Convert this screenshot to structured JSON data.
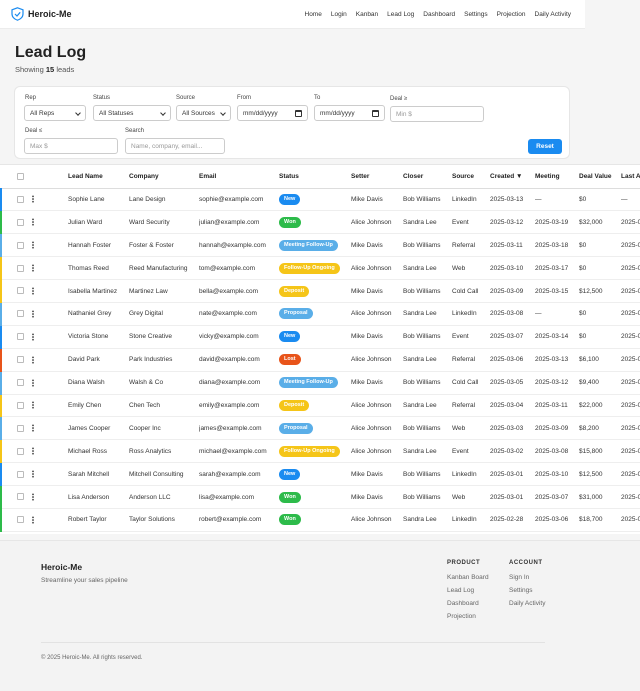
{
  "brand": {
    "name": "Heroic-Me"
  },
  "nav": [
    "Home",
    "Login",
    "Kanban",
    "Lead Log",
    "Dashboard",
    "Settings",
    "Projection",
    "Daily Activity"
  ],
  "header": {
    "title": "Lead Log",
    "showing_prefix": "Showing",
    "count": "15",
    "showing_suffix": "leads"
  },
  "filters": {
    "rep_label": "Rep",
    "rep_value": "All Reps",
    "status_label": "Status",
    "status_value": "All Statuses",
    "source_label": "Source",
    "source_value": "All Sources",
    "from_label": "From",
    "from_value": "mm/dd/yyyy",
    "to_label": "To",
    "to_value": "mm/dd/yyyy",
    "deal_min_label": "Deal ≥",
    "deal_min_placeholder": "Min $",
    "deal_max_label": "Deal ≤",
    "deal_max_placeholder": "Max $",
    "search_label": "Search",
    "search_placeholder": "Name, company, email...",
    "reset_label": "Reset"
  },
  "table": {
    "columns": [
      "Lead Name",
      "Company",
      "Email",
      "Status",
      "Setter",
      "Closer",
      "Source",
      "Created ▼",
      "Meeting",
      "Deal Value",
      "Last Ac"
    ],
    "rows": [
      {
        "name": "Sophie Lane",
        "company": "Lane Design",
        "email": "sophie@example.com",
        "status": "New",
        "setter": "Mike Davis",
        "closer": "Bob Williams",
        "source": "LinkedIn",
        "created": "2025-03-13",
        "meeting": "—",
        "deal": "$0",
        "last": "—"
      },
      {
        "name": "Julian Ward",
        "company": "Ward Security",
        "email": "julian@example.com",
        "status": "Won",
        "setter": "Alice Johnson",
        "closer": "Sandra Lee",
        "source": "Event",
        "created": "2025-03-12",
        "meeting": "2025-03-19",
        "deal": "$32,000",
        "last": "2025-0"
      },
      {
        "name": "Hannah Foster",
        "company": "Foster & Foster",
        "email": "hannah@example.com",
        "status": "Meeting Follow-Up",
        "setter": "Mike Davis",
        "closer": "Bob Williams",
        "source": "Referral",
        "created": "2025-03-11",
        "meeting": "2025-03-18",
        "deal": "$0",
        "last": "2025-0"
      },
      {
        "name": "Thomas Reed",
        "company": "Reed Manufacturing",
        "email": "tom@example.com",
        "status": "Follow-Up Ongoing",
        "setter": "Alice Johnson",
        "closer": "Sandra Lee",
        "source": "Web",
        "created": "2025-03-10",
        "meeting": "2025-03-17",
        "deal": "$0",
        "last": "2025-0"
      },
      {
        "name": "Isabella Martinez",
        "company": "Martinez Law",
        "email": "bella@example.com",
        "status": "Deposit",
        "setter": "Mike Davis",
        "closer": "Bob Williams",
        "source": "Cold Call",
        "created": "2025-03-09",
        "meeting": "2025-03-15",
        "deal": "$12,500",
        "last": "2025-0"
      },
      {
        "name": "Nathaniel Grey",
        "company": "Grey Digital",
        "email": "nate@example.com",
        "status": "Proposal",
        "setter": "Alice Johnson",
        "closer": "Sandra Lee",
        "source": "LinkedIn",
        "created": "2025-03-08",
        "meeting": "—",
        "deal": "$0",
        "last": "2025-0"
      },
      {
        "name": "Victoria Stone",
        "company": "Stone Creative",
        "email": "vicky@example.com",
        "status": "New",
        "setter": "Mike Davis",
        "closer": "Bob Williams",
        "source": "Event",
        "created": "2025-03-07",
        "meeting": "2025-03-14",
        "deal": "$0",
        "last": "2025-0"
      },
      {
        "name": "David Park",
        "company": "Park Industries",
        "email": "david@example.com",
        "status": "Lost",
        "setter": "Alice Johnson",
        "closer": "Sandra Lee",
        "source": "Referral",
        "created": "2025-03-06",
        "meeting": "2025-03-13",
        "deal": "$6,100",
        "last": "2025-0"
      },
      {
        "name": "Diana Walsh",
        "company": "Walsh & Co",
        "email": "diana@example.com",
        "status": "Meeting Follow-Up",
        "setter": "Mike Davis",
        "closer": "Bob Williams",
        "source": "Cold Call",
        "created": "2025-03-05",
        "meeting": "2025-03-12",
        "deal": "$9,400",
        "last": "2025-0"
      },
      {
        "name": "Emily Chen",
        "company": "Chen Tech",
        "email": "emily@example.com",
        "status": "Deposit",
        "setter": "Alice Johnson",
        "closer": "Sandra Lee",
        "source": "Referral",
        "created": "2025-03-04",
        "meeting": "2025-03-11",
        "deal": "$22,000",
        "last": "2025-0"
      },
      {
        "name": "James Cooper",
        "company": "Cooper Inc",
        "email": "james@example.com",
        "status": "Proposal",
        "setter": "Alice Johnson",
        "closer": "Bob Williams",
        "source": "Web",
        "created": "2025-03-03",
        "meeting": "2025-03-09",
        "deal": "$8,200",
        "last": "2025-0"
      },
      {
        "name": "Michael Ross",
        "company": "Ross Analytics",
        "email": "michael@example.com",
        "status": "Follow-Up Ongoing",
        "setter": "Alice Johnson",
        "closer": "Sandra Lee",
        "source": "Event",
        "created": "2025-03-02",
        "meeting": "2025-03-08",
        "deal": "$15,800",
        "last": "2025-0"
      },
      {
        "name": "Sarah Mitchell",
        "company": "Mitchell Consulting",
        "email": "sarah@example.com",
        "status": "New",
        "setter": "Mike Davis",
        "closer": "Bob Williams",
        "source": "LinkedIn",
        "created": "2025-03-01",
        "meeting": "2025-03-10",
        "deal": "$12,500",
        "last": "2025-0"
      },
      {
        "name": "Lisa Anderson",
        "company": "Anderson LLC",
        "email": "lisa@example.com",
        "status": "Won",
        "setter": "Mike Davis",
        "closer": "Bob Williams",
        "source": "Web",
        "created": "2025-03-01",
        "meeting": "2025-03-07",
        "deal": "$31,000",
        "last": "2025-0"
      },
      {
        "name": "Robert Taylor",
        "company": "Taylor Solutions",
        "email": "robert@example.com",
        "status": "Won",
        "setter": "Alice Johnson",
        "closer": "Sandra Lee",
        "source": "LinkedIn",
        "created": "2025-02-28",
        "meeting": "2025-03-06",
        "deal": "$18,700",
        "last": "2025-0"
      }
    ]
  },
  "status_colors": {
    "New": "#1a8bf0",
    "Won": "#2dbb4a",
    "Meeting Follow-Up": "#5aaee8",
    "Follow-Up Ongoing": "#f5c518",
    "Deposit": "#f5c518",
    "Proposal": "#5aaee8",
    "Lost": "#e8541a"
  },
  "footer": {
    "brand": "Heroic-Me",
    "tagline": "Streamline your sales pipeline",
    "product_heading": "PRODUCT",
    "product_links": [
      "Kanban Board",
      "Lead Log",
      "Dashboard",
      "Projection"
    ],
    "account_heading": "ACCOUNT",
    "account_links": [
      "Sign In",
      "Settings",
      "Daily Activity"
    ],
    "copyright": "© 2025 Heroic-Me. All rights reserved."
  }
}
